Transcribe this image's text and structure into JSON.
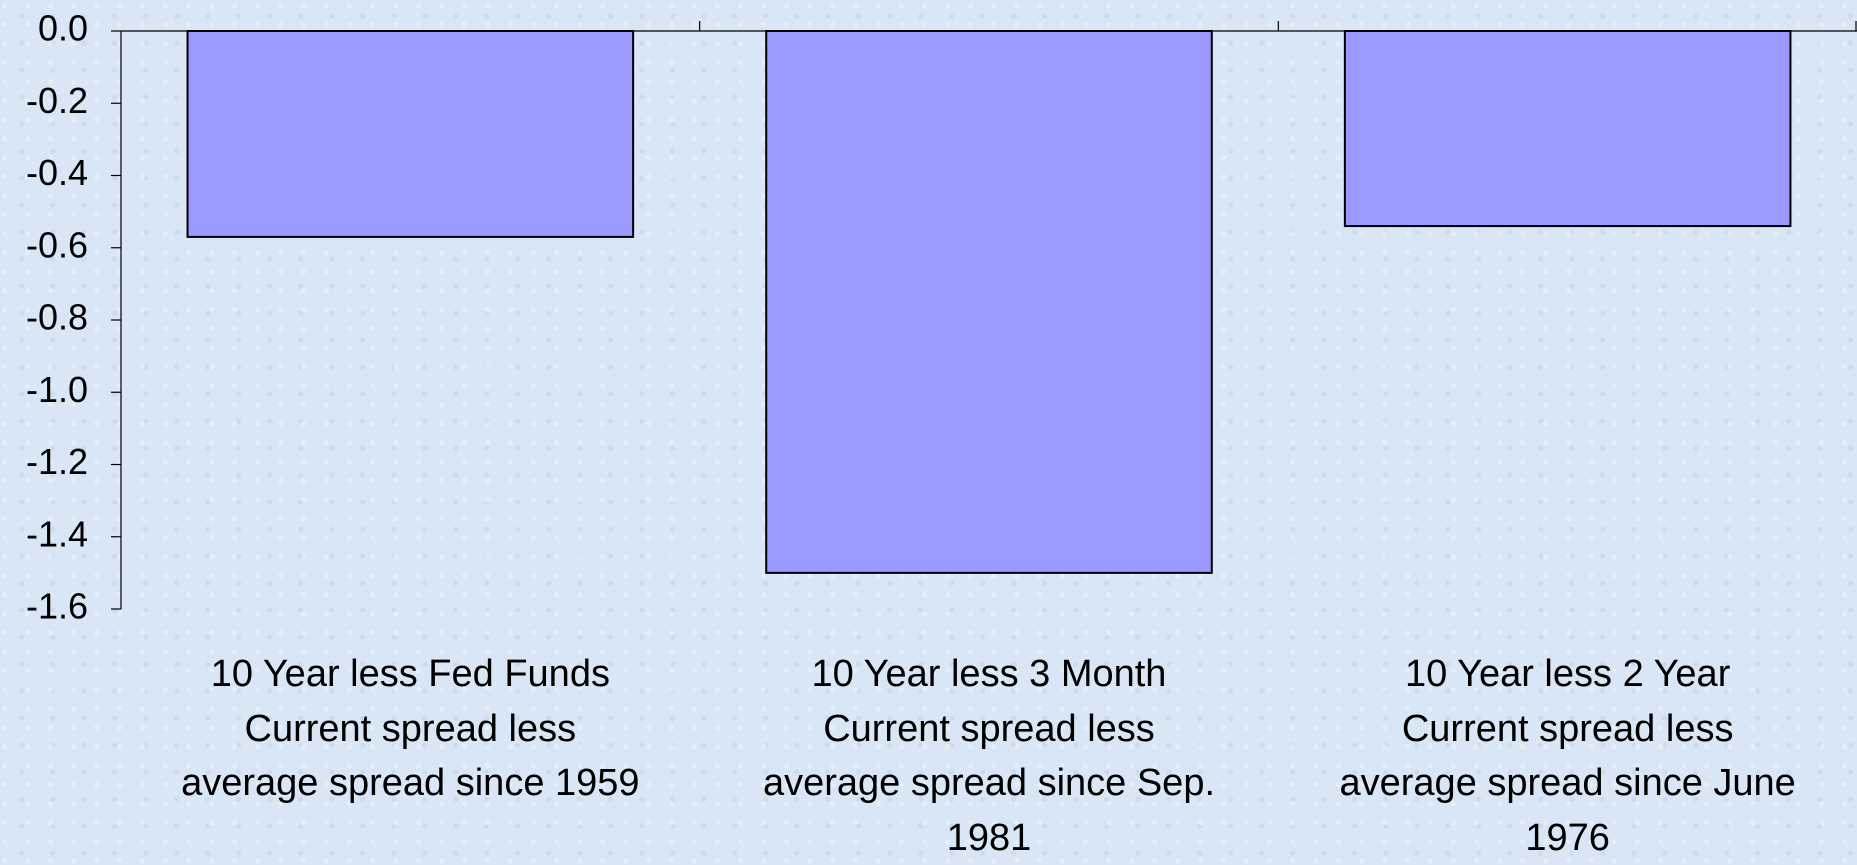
{
  "chart_data": {
    "type": "bar",
    "categories": [
      "10 Year less Fed Funds\nCurrent spread less\naverage spread since 1959",
      "10 Year less 3 Month\nCurrent spread less\naverage spread since Sep.\n1981",
      "10 Year less 2 Year\nCurrent spread less\naverage spread since June\n1976"
    ],
    "values": [
      -0.57,
      -1.5,
      -0.54
    ],
    "color": "#9999ff",
    "ylim": [
      -1.6,
      0
    ],
    "yticks": [
      {
        "value": 0,
        "label": "0.0"
      },
      -0.2,
      -0.4,
      -0.6,
      -0.8,
      {
        "value": -1,
        "label": "-1.0"
      },
      -1.2,
      -1.4,
      -1.6
    ],
    "grid": false
  }
}
